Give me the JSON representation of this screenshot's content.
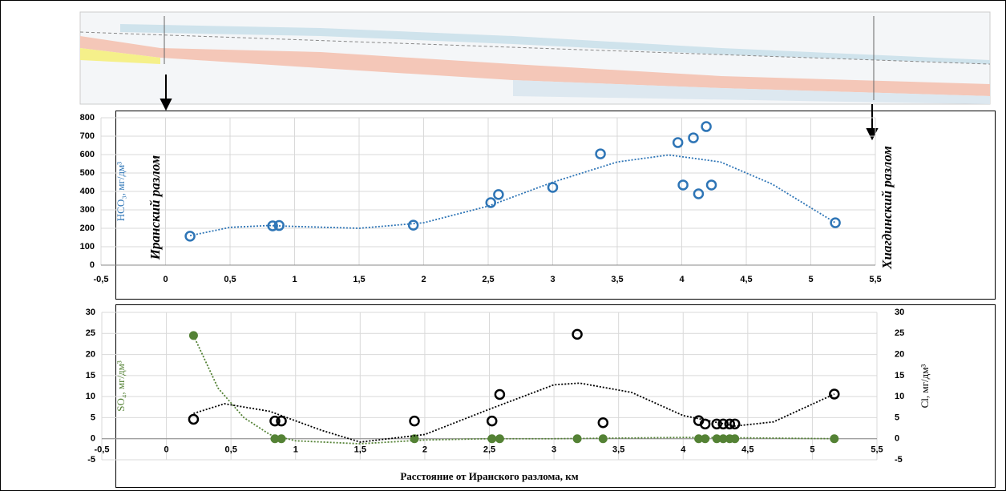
{
  "chart_data": [
    {
      "type": "scatter",
      "ylabel": "HCO₃, мг/дм³",
      "annotations": [
        "Иранский разлом",
        "Хиагдинский разлом"
      ],
      "xlim": [
        -0.5,
        5.5
      ],
      "xticks": [
        {
          "value": -0.5,
          "label": "-0,5"
        },
        0,
        {
          "value": 0.5,
          "label": "0,5"
        },
        1,
        {
          "value": 1.5,
          "label": "1,5"
        },
        2,
        {
          "value": 2.5,
          "label": "2,5"
        },
        3,
        {
          "value": 3.5,
          "label": "3,5"
        },
        4,
        {
          "value": 4.5,
          "label": "4,5"
        },
        5,
        {
          "value": 5.5,
          "label": "5,5"
        }
      ],
      "ylim": [
        0,
        800
      ],
      "yticks": [
        0,
        100,
        200,
        300,
        400,
        500,
        600,
        700,
        800
      ],
      "grid": true,
      "series": [
        {
          "color": "#2e75b6",
          "marker": "open",
          "x": [
            0.19,
            0.83,
            0.88,
            1.92,
            2.52,
            2.58,
            3.0,
            3.37,
            3.97,
            4.09,
            4.19,
            4.01,
            4.13,
            4.23,
            5.19
          ],
          "values": [
            157,
            213,
            215,
            217,
            339,
            383,
            422,
            604,
            665,
            691,
            752,
            435,
            387,
            435,
            230
          ],
          "trend": {
            "x": [
              0.19,
              0.5,
              0.8,
              1.0,
              1.5,
              2.0,
              2.5,
              3.0,
              3.5,
              3.9,
              4.3,
              4.7,
              5.19
            ],
            "values": [
              160,
              205,
              215,
              210,
              200,
              230,
              320,
              450,
              560,
              598,
              560,
              440,
              230
            ]
          }
        }
      ]
    },
    {
      "type": "scatter",
      "xlabel": "Расстояние от Иранского разлома, км",
      "ylabel": "SO₄, мг/дм³",
      "y2label": "Cl, мг/дм³",
      "xlim": [
        -0.5,
        5.5
      ],
      "xticks": [
        {
          "value": -0.5,
          "label": "-0,5"
        },
        0,
        {
          "value": 0.5,
          "label": "0,5"
        },
        1,
        {
          "value": 1.5,
          "label": "1,5"
        },
        2,
        {
          "value": 2.5,
          "label": "2,5"
        },
        3,
        {
          "value": 3.5,
          "label": "3,5"
        },
        4,
        {
          "value": 4.5,
          "label": "4,5"
        },
        5,
        {
          "value": 5.5,
          "label": "5,5"
        }
      ],
      "ylim": [
        -5,
        30
      ],
      "yticks": [
        -5,
        0,
        5,
        10,
        15,
        20,
        25,
        30
      ],
      "y2lim": [
        -5,
        30
      ],
      "y2ticks": [
        -5,
        0,
        5,
        10,
        15,
        20,
        25,
        30
      ],
      "grid": true,
      "series": [
        {
          "color": "#548235",
          "marker": "filled",
          "x": [
            0.21,
            0.84,
            0.89,
            1.92,
            2.52,
            2.58,
            3.18,
            3.38,
            4.12,
            4.17,
            4.26,
            4.31,
            4.36,
            4.4,
            5.17
          ],
          "values": [
            24.5,
            0,
            0,
            0,
            0,
            0,
            0,
            0,
            0,
            0,
            0,
            0,
            0,
            0,
            0
          ],
          "trend": {
            "x": [
              0.21,
              0.4,
              0.6,
              0.8,
              1.0,
              1.5,
              2.0,
              2.5,
              3.0,
              4.0,
              4.5,
              5.17
            ],
            "values": [
              24.5,
              12,
              5,
              1,
              -0.5,
              -1.2,
              -0.3,
              0,
              0,
              0.3,
              0.2,
              0
            ]
          }
        },
        {
          "color": "#000000",
          "marker": "open",
          "axis": "y2",
          "x": [
            0.21,
            0.84,
            0.89,
            1.92,
            2.52,
            2.58,
            3.18,
            3.38,
            4.12,
            4.17,
            4.26,
            4.31,
            4.36,
            4.4,
            5.17
          ],
          "values": [
            4.6,
            4.2,
            4.2,
            4.2,
            4.2,
            10.5,
            24.8,
            3.8,
            4.3,
            3.5,
            3.5,
            3.5,
            3.5,
            3.5,
            10.6
          ],
          "trend": {
            "x": [
              0.21,
              0.45,
              0.8,
              1.2,
              1.5,
              2.0,
              2.5,
              3.0,
              3.2,
              3.6,
              4.0,
              4.4,
              4.7,
              5.17
            ],
            "values": [
              6,
              8.3,
              6.5,
              2,
              -0.8,
              1,
              7,
              12.8,
              13.2,
              11,
              5.5,
              3,
              4,
              10.6
            ]
          }
        }
      ]
    }
  ]
}
